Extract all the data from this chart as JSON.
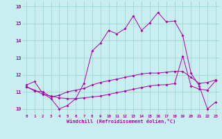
{
  "xlabel": "Windchill (Refroidissement éolien,°C)",
  "bg_color": "#c8eef0",
  "grid_color": "#a0d8d0",
  "line_color": "#aa00aa",
  "hours": [
    0,
    1,
    2,
    3,
    4,
    5,
    6,
    7,
    8,
    9,
    10,
    11,
    12,
    13,
    14,
    15,
    16,
    17,
    18,
    19,
    20,
    21,
    22,
    23
  ],
  "line1": [
    11.4,
    11.6,
    10.9,
    10.6,
    10.0,
    10.2,
    10.6,
    11.5,
    13.4,
    13.85,
    14.6,
    14.4,
    14.7,
    15.45,
    14.6,
    15.05,
    15.65,
    15.1,
    15.15,
    14.3,
    12.1,
    11.35,
    10.0,
    10.4
  ],
  "line2": [
    11.3,
    11.05,
    11.0,
    10.7,
    10.8,
    11.0,
    11.1,
    11.2,
    11.4,
    11.55,
    11.65,
    11.75,
    11.85,
    11.95,
    12.05,
    12.1,
    12.1,
    12.15,
    12.2,
    12.2,
    11.85,
    11.5,
    11.55,
    11.7
  ],
  "line3": [
    11.3,
    11.1,
    10.85,
    10.75,
    10.65,
    10.6,
    10.6,
    10.65,
    10.7,
    10.75,
    10.85,
    10.95,
    11.05,
    11.15,
    11.25,
    11.35,
    11.4,
    11.42,
    11.48,
    13.1,
    11.35,
    11.15,
    11.1,
    11.65
  ],
  "ylim": [
    9.7,
    16.3
  ],
  "yticks": [
    10,
    11,
    12,
    13,
    14,
    15,
    16
  ],
  "xticks": [
    0,
    1,
    2,
    3,
    4,
    5,
    6,
    7,
    8,
    9,
    10,
    11,
    12,
    13,
    14,
    15,
    16,
    17,
    18,
    19,
    20,
    21,
    22,
    23
  ]
}
